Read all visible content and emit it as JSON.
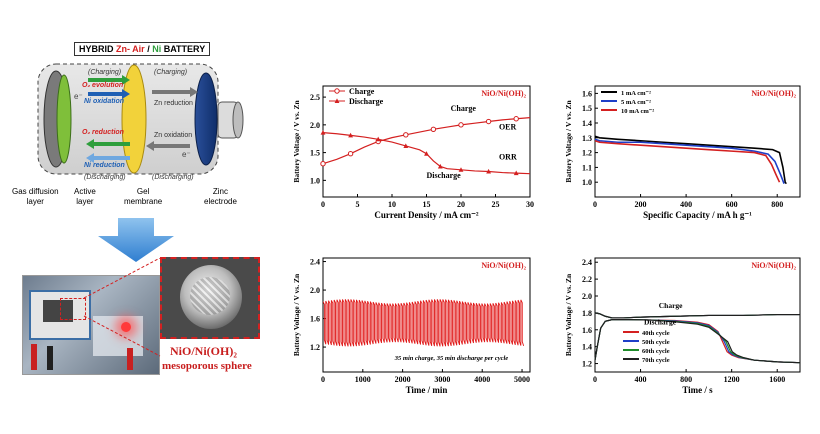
{
  "battery": {
    "title_prefix": "HYBRID ",
    "title_zn_air": "Zn- Air",
    "title_slash": " / ",
    "title_ni": "Ni",
    "title_suffix": " BATTERY",
    "charging_left": "(Charging)",
    "charging_right": "(Charging)",
    "discharging_left": "(Discharging)",
    "discharging_right": "(Discharging)",
    "o2_evolution": "O₂ evolution",
    "ni_oxidation": "Ni oxidation",
    "o2_reduction": "O₂ reduction",
    "ni_reduction": "Ni reduction",
    "zn_reduction": "Zn reduction",
    "zn_oxidation": "Zn oxidation",
    "electron_symbol": "e⁻",
    "labels": {
      "gas_diffusion": "Gas diffusion\nlayer",
      "active": "Active\nlayer",
      "gel": "Gel\nmembrane",
      "zinc": "Zinc\nelectrode"
    },
    "colors": {
      "green": "#2e9e3c",
      "red": "#d42020",
      "blue": "#1e5fb4",
      "yellow": "#f2d23a",
      "gray": "#777777"
    }
  },
  "photo": {
    "caption_line1": "NiO/Ni(OH)₂",
    "caption_line2": "mesoporous sphere",
    "caption_color": "#c81e1e"
  },
  "charts": [
    {
      "id": "polarization",
      "type": "line",
      "xlabel": "Current Density / mA cm⁻²",
      "ylabel": "Battery Voltage / V vs. Zn",
      "xlim": [
        0,
        30
      ],
      "ylim": [
        0.7,
        2.7
      ],
      "xticks": [
        "0",
        "5",
        "10",
        "15",
        "20",
        "25",
        "30"
      ],
      "yticks": [
        "1.0",
        "1.5",
        "2.0",
        "2.5"
      ],
      "material": "NiO/Ni(OH)₂",
      "legend": [
        "Charge",
        "Discharge"
      ],
      "annotations": {
        "charge": "Charge",
        "discharge": "Discharge",
        "oer": "OER",
        "orr": "ORR"
      },
      "series": [
        {
          "name": "Charge",
          "x": [
            0,
            2,
            4,
            6,
            8,
            10,
            12,
            14,
            16,
            18,
            20,
            22,
            24,
            26,
            28,
            30
          ],
          "y": [
            1.3,
            1.38,
            1.48,
            1.6,
            1.7,
            1.77,
            1.82,
            1.87,
            1.92,
            1.96,
            2.0,
            2.03,
            2.06,
            2.09,
            2.11,
            2.13
          ]
        },
        {
          "name": "Discharge",
          "x": [
            0,
            2,
            4,
            6,
            8,
            10,
            12,
            14,
            15,
            16,
            17,
            18,
            20,
            22,
            24,
            26,
            28,
            30
          ],
          "y": [
            1.86,
            1.84,
            1.81,
            1.78,
            1.74,
            1.69,
            1.62,
            1.55,
            1.48,
            1.35,
            1.25,
            1.21,
            1.19,
            1.17,
            1.16,
            1.14,
            1.13,
            1.12
          ]
        }
      ]
    },
    {
      "id": "rate",
      "type": "line",
      "xlabel": "Specific Capacity / mA h g⁻¹",
      "ylabel": "Battery Voltage / V vs. Zn",
      "xlim": [
        0,
        900
      ],
      "ylim": [
        0.9,
        1.65
      ],
      "xticks": [
        "0",
        "200",
        "400",
        "600",
        "800"
      ],
      "yticks": [
        "1.0",
        "1.1",
        "1.2",
        "1.3",
        "1.4",
        "1.5",
        "1.6"
      ],
      "material": "NiO/Ni(OH)₂",
      "legend": [
        "1 mA cm⁻²",
        "5 mA cm⁻²",
        "10 mA cm⁻²"
      ],
      "series": [
        {
          "name": "1 mA cm⁻²",
          "color": "#000000",
          "x": [
            0,
            20,
            100,
            200,
            300,
            400,
            500,
            600,
            700,
            780,
            810,
            825,
            835,
            840
          ],
          "y": [
            1.31,
            1.3,
            1.29,
            1.28,
            1.27,
            1.26,
            1.25,
            1.24,
            1.23,
            1.22,
            1.2,
            1.1,
            1.0,
            0.99
          ]
        },
        {
          "name": "5 mA cm⁻²",
          "color": "#1e3fc8",
          "x": [
            0,
            20,
            100,
            200,
            300,
            400,
            500,
            600,
            700,
            760,
            790,
            815,
            830
          ],
          "y": [
            1.29,
            1.28,
            1.27,
            1.27,
            1.26,
            1.25,
            1.24,
            1.23,
            1.21,
            1.19,
            1.14,
            1.05,
            0.99
          ]
        },
        {
          "name": "10 mA cm⁻²",
          "color": "#d42020",
          "x": [
            0,
            20,
            100,
            200,
            300,
            400,
            500,
            600,
            700,
            750,
            775,
            795,
            810
          ],
          "y": [
            1.28,
            1.27,
            1.26,
            1.25,
            1.24,
            1.23,
            1.22,
            1.21,
            1.2,
            1.18,
            1.12,
            1.05,
            1.0
          ]
        }
      ]
    },
    {
      "id": "cycling",
      "type": "line",
      "xlabel": "Time / min",
      "ylabel": "Battery Voltage / V vs. Zn",
      "xlim": [
        0,
        5200
      ],
      "ylim": [
        0.85,
        2.45
      ],
      "xticks": [
        "0",
        "1000",
        "2000",
        "3000",
        "4000",
        "5000"
      ],
      "yticks": [
        "1.2",
        "1.6",
        "2.0",
        "2.4"
      ],
      "material": "NiO/Ni(OH)₂",
      "annotation": "35 min charge, 35 min discharge per cycle",
      "cycles": {
        "period": 70,
        "charge_v": 1.84,
        "discharge_v": 1.24
      }
    },
    {
      "id": "cycles",
      "type": "line",
      "xlabel": "Time / s",
      "ylabel": "Battery Voltage / V vs. Zn",
      "xlim": [
        0,
        1800
      ],
      "ylim": [
        1.1,
        2.45
      ],
      "xticks": [
        "0",
        "400",
        "800",
        "1200",
        "1600"
      ],
      "yticks": [
        "1.2",
        "1.4",
        "1.6",
        "1.8",
        "2.0",
        "2.2",
        "2.4"
      ],
      "material": "NiO/Ni(OH)₂",
      "annotations": {
        "charge": "Charge",
        "discharge": "Discharge"
      },
      "legend": [
        "40th cycle",
        "50th cycle",
        "60th cycle",
        "70th cycle"
      ],
      "series": [
        {
          "name": "40th cycle",
          "color": "#d42020",
          "shift": 0
        },
        {
          "name": "50th cycle",
          "color": "#1e3fc8",
          "shift": 15
        },
        {
          "name": "60th cycle",
          "color": "#1e8c2a",
          "shift": 30
        },
        {
          "name": "70th cycle",
          "color": "#202020",
          "shift": 45
        }
      ]
    }
  ]
}
